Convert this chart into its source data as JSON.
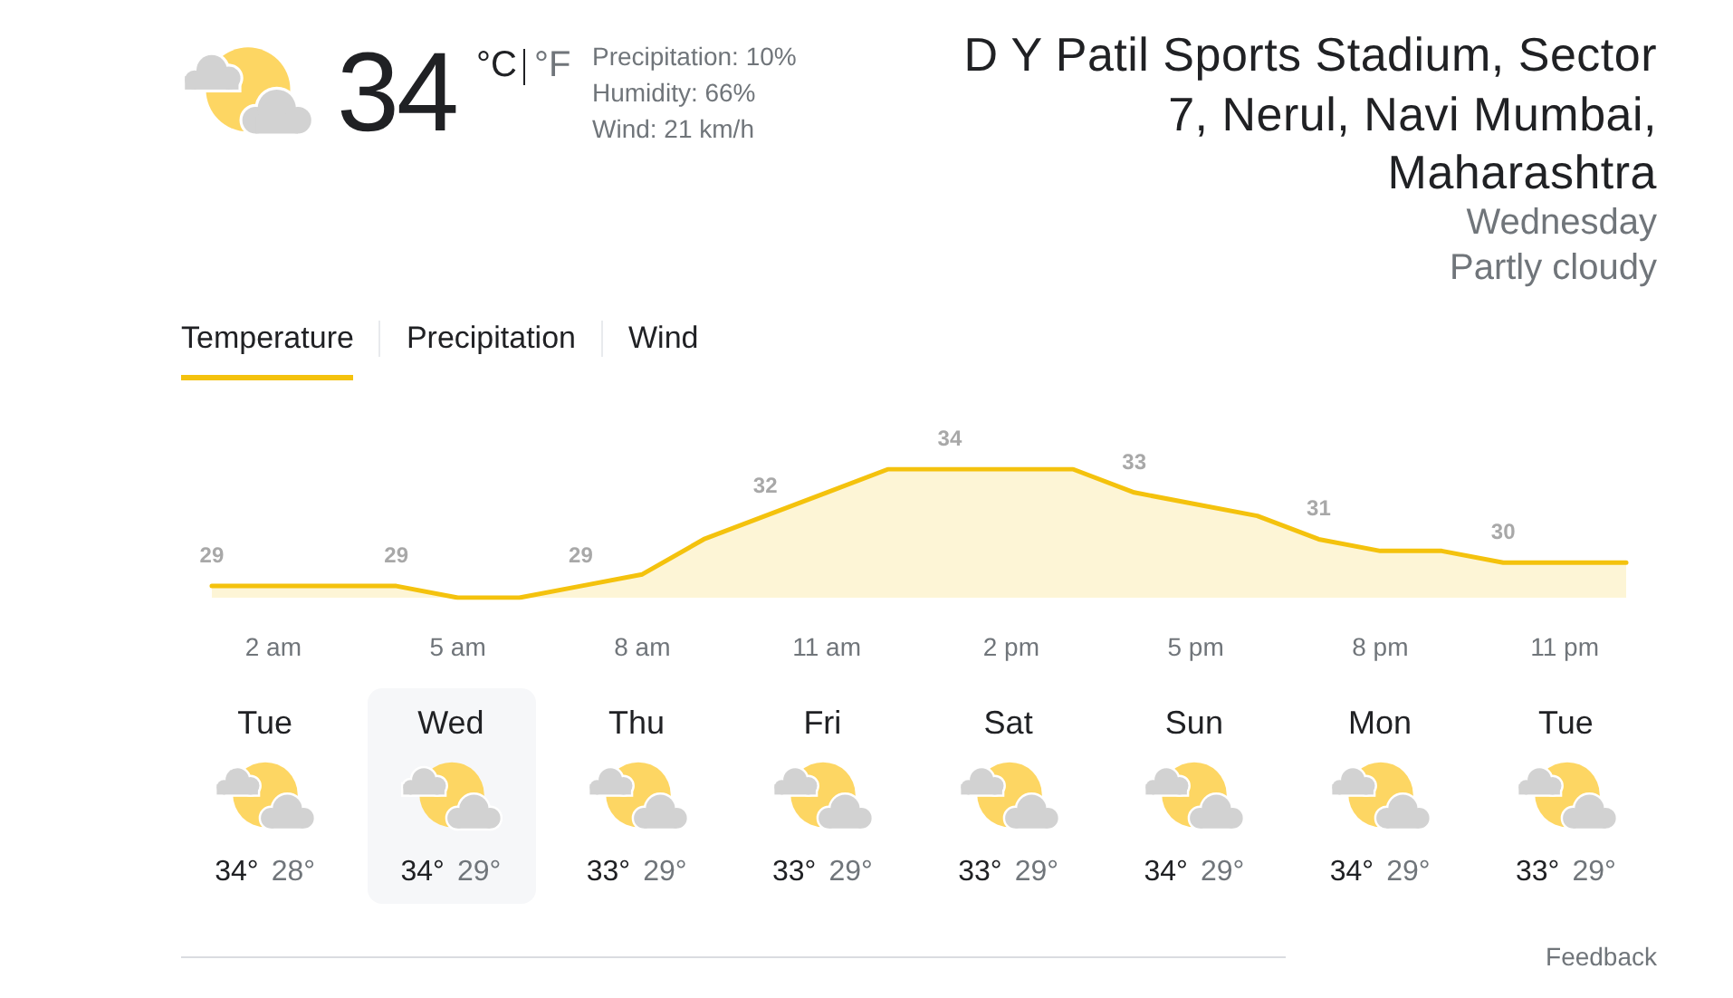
{
  "chart_data": [
    {
      "type": "other",
      "title": "D Y Patil Sports Stadium, Sector 7, Nerul, Navi Mumbai, Maharashtra",
      "subtitle": "Wednesday",
      "annotations": [
        "34",
        "°C",
        "°F",
        "Precipitation: 10%",
        "Humidity: 66%",
        "Wind: 21 km/h",
        "Partly cloudy",
        "Temperature",
        "Precipitation",
        "Wind"
      ]
    },
    {
      "type": "area",
      "categories": [
        null,
        "2 am",
        null,
        null,
        "5 am",
        null,
        null,
        "8 am",
        null,
        null,
        "11 am",
        null,
        null,
        "2 pm",
        null,
        null,
        "5 pm",
        null,
        null,
        "8 pm",
        null,
        null,
        "11 pm",
        null
      ],
      "color": "#f4c20d",
      "values": [
        29,
        29,
        29,
        29,
        28.5,
        28.5,
        29,
        29.5,
        31,
        32,
        33,
        34,
        34,
        34,
        34,
        33,
        32.5,
        32,
        31,
        30.5,
        30.5,
        30,
        30,
        30
      ],
      "value_labels": [
        "29",
        null,
        null,
        "29",
        null,
        null,
        "29",
        null,
        null,
        "32",
        null,
        null,
        "34",
        null,
        null,
        "33",
        null,
        null,
        "31",
        null,
        null,
        "30",
        null,
        null
      ]
    },
    {
      "type": "other",
      "categories": [
        "Tue",
        "Wed",
        "Thu",
        "Fri",
        "Sat",
        "Sun",
        "Mon",
        "Tue"
      ],
      "annotations": [
        "34°",
        "28°",
        "34°",
        "29°",
        "33°",
        "29°",
        "33°",
        "29°",
        "33°",
        "29°",
        "34°",
        "29°",
        "34°",
        "29°",
        "33°",
        "29°",
        "Feedback"
      ]
    }
  ]
}
